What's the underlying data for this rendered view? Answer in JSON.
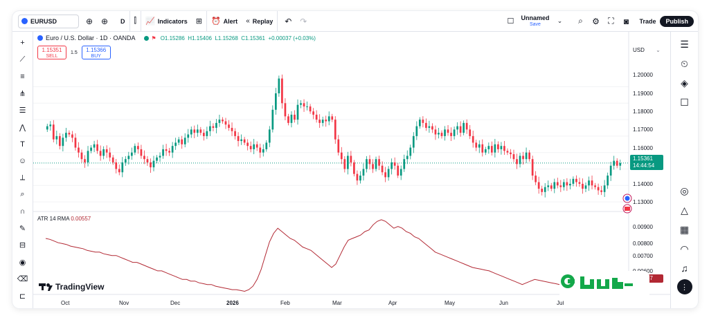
{
  "toolbar": {
    "symbol": "EURUSD",
    "interval": "D",
    "indicators_label": "Indicators",
    "alert_label": "Alert",
    "replay_label": "Replay",
    "layout_name": "Unnamed",
    "layout_status": "Save",
    "trade_label": "Trade",
    "publish_label": "Publish"
  },
  "legend": {
    "title": "Euro / U.S. Dollar · 1D · OANDA",
    "open": "O1.15286",
    "high": "H1.15406",
    "low": "L1.15268",
    "close": "C1.15361",
    "change": "+0.00037 (+0.03%)"
  },
  "trading": {
    "sell_price": "1.15351",
    "sell_label": "SELL",
    "spread": "1.5",
    "buy_price": "1.15366",
    "buy_label": "BUY"
  },
  "price_axis": {
    "currency": "USD",
    "labels": [
      "1.20000",
      "1.19000",
      "1.18000",
      "1.17000",
      "1.16000",
      "1.14000",
      "1.13000"
    ],
    "last_price": "1.15361",
    "countdown": "14:44:54"
  },
  "atr": {
    "label": "ATR 14 RMA",
    "value": "0.00557",
    "axis_labels": [
      "0.00900",
      "0.00800",
      "0.00700",
      "0.00600"
    ],
    "current": "0.00557"
  },
  "time_axis": [
    "Oct",
    "Nov",
    "Dec",
    "2026",
    "Feb",
    "Mar",
    "Apr",
    "May",
    "Jun",
    "Jul"
  ],
  "branding": {
    "logo_text": "TradingView"
  },
  "colors": {
    "up": "#089981",
    "down": "#f23645",
    "atr": "#b22833",
    "accent": "#2962ff"
  },
  "chart_data": {
    "type": "candlestick",
    "title": "",
    "y_range": [
      1.125,
      1.225
    ],
    "atr_range": [
      0.005,
      0.0097
    ],
    "closes": [
      1.176,
      1.177,
      1.168,
      1.17,
      1.164,
      1.169,
      1.172,
      1.171,
      1.169,
      1.163,
      1.16,
      1.156,
      1.154,
      1.161,
      1.163,
      1.165,
      1.161,
      1.158,
      1.162,
      1.16,
      1.157,
      1.154,
      1.15,
      1.148,
      1.154,
      1.156,
      1.158,
      1.16,
      1.164,
      1.162,
      1.158,
      1.156,
      1.154,
      1.151,
      1.155,
      1.157,
      1.158,
      1.162,
      1.161,
      1.16,
      1.164,
      1.166,
      1.168,
      1.165,
      1.169,
      1.171,
      1.174,
      1.172,
      1.174,
      1.172,
      1.17,
      1.173,
      1.176,
      1.175,
      1.178,
      1.18,
      1.179,
      1.177,
      1.175,
      1.173,
      1.17,
      1.167,
      1.168,
      1.166,
      1.164,
      1.162,
      1.165,
      1.163,
      1.16,
      1.162,
      1.166,
      1.174,
      1.186,
      1.196,
      1.205,
      1.19,
      1.182,
      1.178,
      1.183,
      1.18,
      1.189,
      1.19,
      1.188,
      1.188,
      1.185,
      1.183,
      1.18,
      1.178,
      1.18,
      1.179,
      1.182,
      1.18,
      1.168,
      1.16,
      1.156,
      1.15,
      1.158,
      1.154,
      1.147,
      1.143,
      1.146,
      1.15,
      1.156,
      1.153,
      1.15,
      1.156,
      1.152,
      1.148,
      1.145,
      1.15,
      1.154,
      1.152,
      1.146,
      1.15,
      1.156,
      1.158,
      1.163,
      1.17,
      1.176,
      1.18,
      1.178,
      1.175,
      1.176,
      1.174,
      1.171,
      1.172,
      1.17,
      1.174,
      1.172,
      1.17,
      1.174,
      1.176,
      1.172,
      1.178,
      1.174,
      1.17,
      1.166,
      1.163,
      1.165,
      1.16,
      1.162,
      1.164,
      1.16,
      1.165,
      1.162,
      1.164,
      1.161,
      1.16,
      1.159,
      1.156,
      1.153,
      1.158,
      1.156,
      1.16,
      1.156,
      1.146,
      1.142,
      1.138,
      1.136,
      1.139,
      1.14,
      1.138,
      1.142,
      1.14,
      1.139,
      1.142,
      1.14,
      1.141,
      1.144,
      1.142,
      1.141,
      1.138,
      1.14,
      1.143,
      1.14,
      1.139,
      1.137,
      1.136,
      1.14,
      1.146,
      1.152,
      1.155,
      1.152,
      1.1536
    ],
    "atr_values": [
      0.0082,
      0.00815,
      0.00805,
      0.00795,
      0.0079,
      0.00785,
      0.00775,
      0.0077,
      0.00765,
      0.0076,
      0.0075,
      0.00745,
      0.0074,
      0.0074,
      0.0073,
      0.00725,
      0.0072,
      0.0072,
      0.0071,
      0.007,
      0.0069,
      0.0068,
      0.0068,
      0.0067,
      0.0066,
      0.0065,
      0.0064,
      0.0063,
      0.0063,
      0.0062,
      0.0061,
      0.006,
      0.0059,
      0.0058,
      0.0058,
      0.0057,
      0.0057,
      0.0056,
      0.00555,
      0.0055,
      0.0055,
      0.0054,
      0.00535,
      0.0053,
      0.00525,
      0.0052,
      0.0052,
      0.00515,
      0.0051,
      0.0052,
      0.0054,
      0.0058,
      0.0064,
      0.0072,
      0.008,
      0.0085,
      0.0088,
      0.0086,
      0.0084,
      0.0082,
      0.0081,
      0.0079,
      0.0077,
      0.0076,
      0.0075,
      0.0073,
      0.0071,
      0.0069,
      0.0067,
      0.0065,
      0.0067,
      0.0072,
      0.0077,
      0.0081,
      0.0082,
      0.0083,
      0.0084,
      0.0086,
      0.0087,
      0.009,
      0.0092,
      0.0093,
      0.0092,
      0.009,
      0.0088,
      0.0089,
      0.0088,
      0.0086,
      0.0085,
      0.0083,
      0.0082,
      0.008,
      0.0078,
      0.0076,
      0.0074,
      0.0073,
      0.0072,
      0.0071,
      0.007,
      0.0069,
      0.0068,
      0.0067,
      0.0066,
      0.0065,
      0.00645,
      0.0064,
      0.00635,
      0.0063,
      0.0062,
      0.0061,
      0.006,
      0.0059,
      0.0058,
      0.0057,
      0.0056,
      0.0055,
      0.0056,
      0.0057,
      0.0058,
      0.00575,
      0.0057,
      0.00565,
      0.0056,
      0.00555,
      0.0055,
      0.00545,
      0.0054,
      0.0057,
      0.0059,
      0.0058,
      0.0057,
      0.0056,
      0.00555,
      0.0055,
      0.0054,
      0.0053,
      0.0056,
      0.0059,
      0.0058,
      0.00557
    ]
  }
}
